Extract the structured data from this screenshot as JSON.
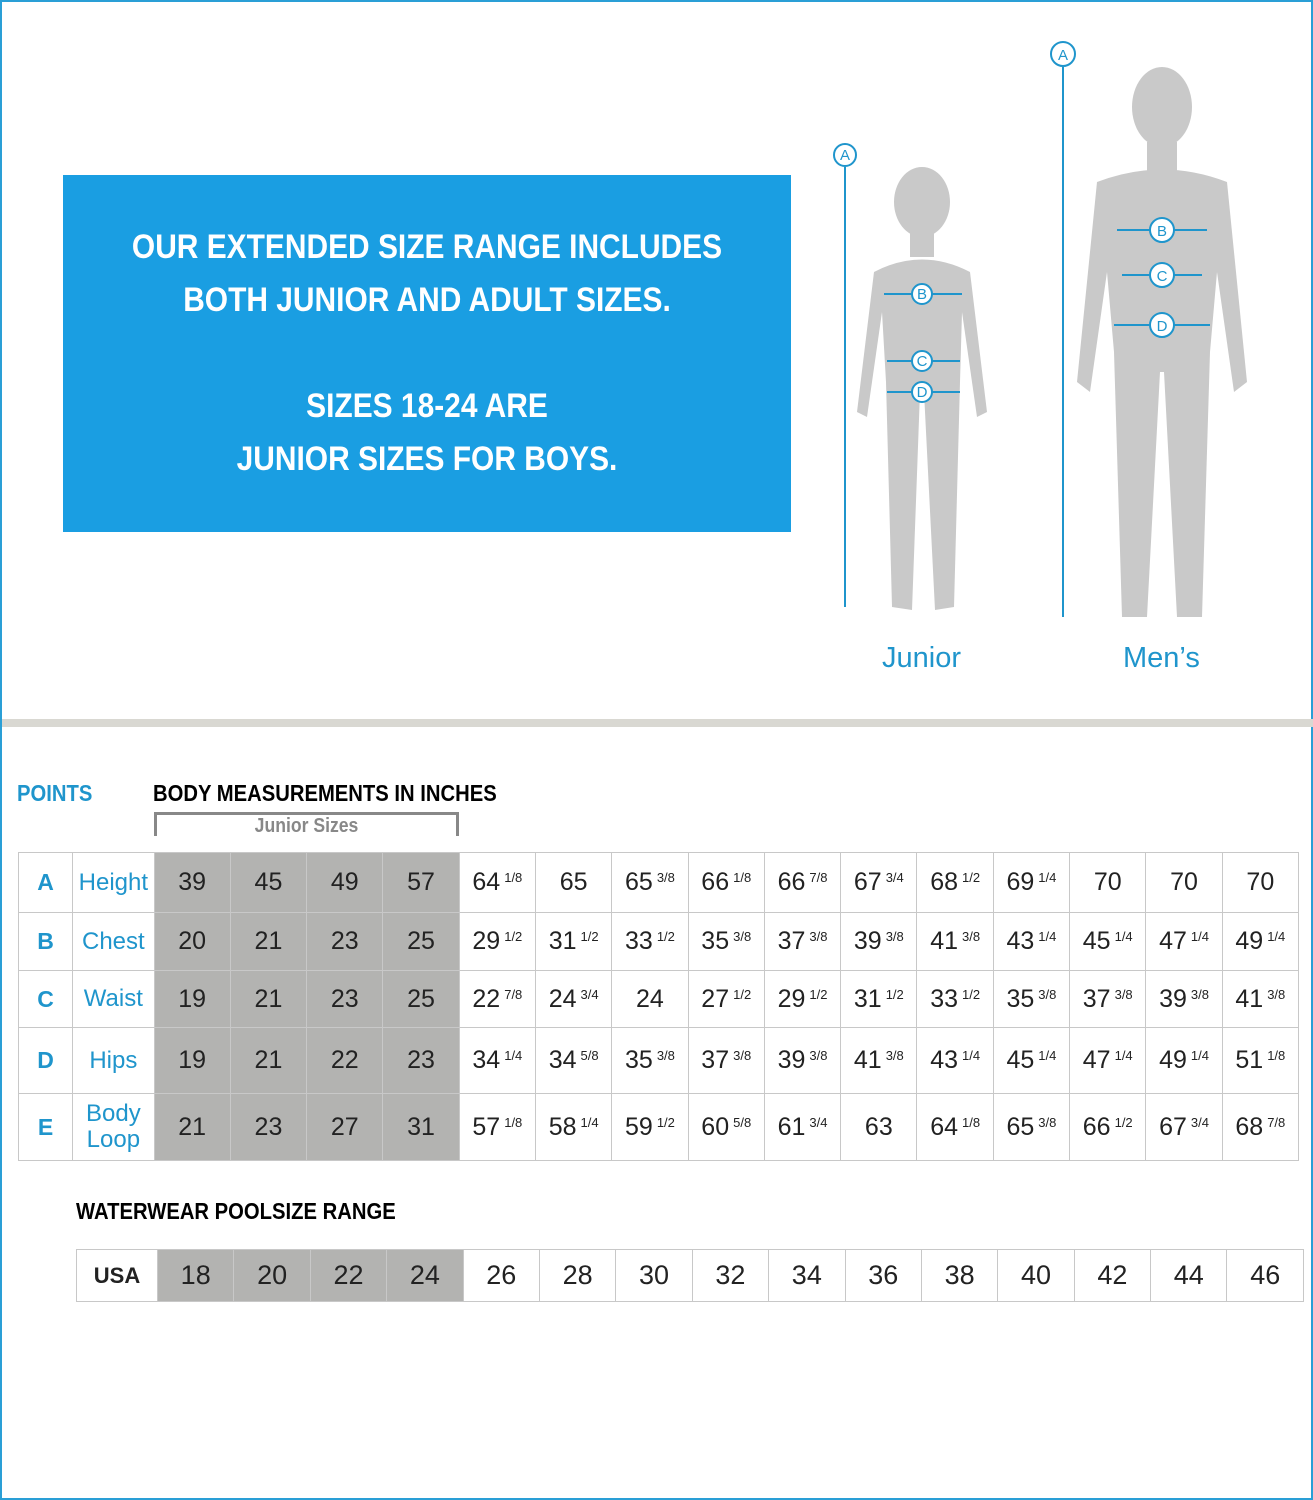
{
  "promo": {
    "line1": "OUR EXTENDED SIZE RANGE INCLUDES",
    "line2": "BOTH JUNIOR AND ADULT SIZES.",
    "line3": "SIZES 18-24 ARE",
    "line4": "JUNIOR SIZES FOR BOYS."
  },
  "figures": {
    "junior_label": "Junior",
    "mens_label": "Men’s",
    "points": [
      "A",
      "B",
      "C",
      "D"
    ]
  },
  "colors": {
    "accent": "#1a9ee2",
    "junior_cell": "#b3b3b1",
    "divider": "#d9d8d2"
  },
  "measurements": {
    "points_header": "POINTS",
    "title": "BODY MEASUREMENTS IN INCHES",
    "junior_bracket": "Junior Sizes",
    "junior_count": 4,
    "rows": [
      {
        "point": "A",
        "label": "Height",
        "values": [
          "39",
          "45",
          "49",
          "57",
          "64 1/8",
          "65",
          "65 3/8",
          "66 1/8",
          "66 7/8",
          "67 3/4",
          "68 1/2",
          "69 1/4",
          "70",
          "70",
          "70"
        ]
      },
      {
        "point": "B",
        "label": "Chest",
        "values": [
          "20",
          "21",
          "23",
          "25",
          "29 1/2",
          "31 1/2",
          "33 1/2",
          "35 3/8",
          "37 3/8",
          "39 3/8",
          "41 3/8",
          "43 1/4",
          "45 1/4",
          "47 1/4",
          "49 1/4"
        ]
      },
      {
        "point": "C",
        "label": "Waist",
        "values": [
          "19",
          "21",
          "23",
          "25",
          "22 7/8",
          "24 3/4",
          "24",
          "27 1/2",
          "29 1/2",
          "31 1/2",
          "33 1/2",
          "35 3/8",
          "37 3/8",
          "39 3/8",
          "41 3/8"
        ]
      },
      {
        "point": "D",
        "label": "Hips",
        "values": [
          "19",
          "21",
          "22",
          "23",
          "34 1/4",
          "34 5/8",
          "35 3/8",
          "37 3/8",
          "39 3/8",
          "41 3/8",
          "43 1/4",
          "45 1/4",
          "47 1/4",
          "49 1/4",
          "51 1/8"
        ]
      },
      {
        "point": "E",
        "label": "Body Loop",
        "values": [
          "21",
          "23",
          "27",
          "31",
          "57 1/8",
          "58 1/4",
          "59 1/2",
          "60 5/8",
          "61 3/4",
          "63",
          "64 1/8",
          "65 3/8",
          "66 1/2",
          "67 3/4",
          "68 7/8"
        ]
      }
    ]
  },
  "poolsize": {
    "title": "WATERWEAR POOLSIZE RANGE",
    "label": "USA",
    "sizes": [
      "18",
      "20",
      "22",
      "24",
      "26",
      "28",
      "30",
      "32",
      "34",
      "36",
      "38",
      "40",
      "42",
      "44",
      "46"
    ]
  }
}
